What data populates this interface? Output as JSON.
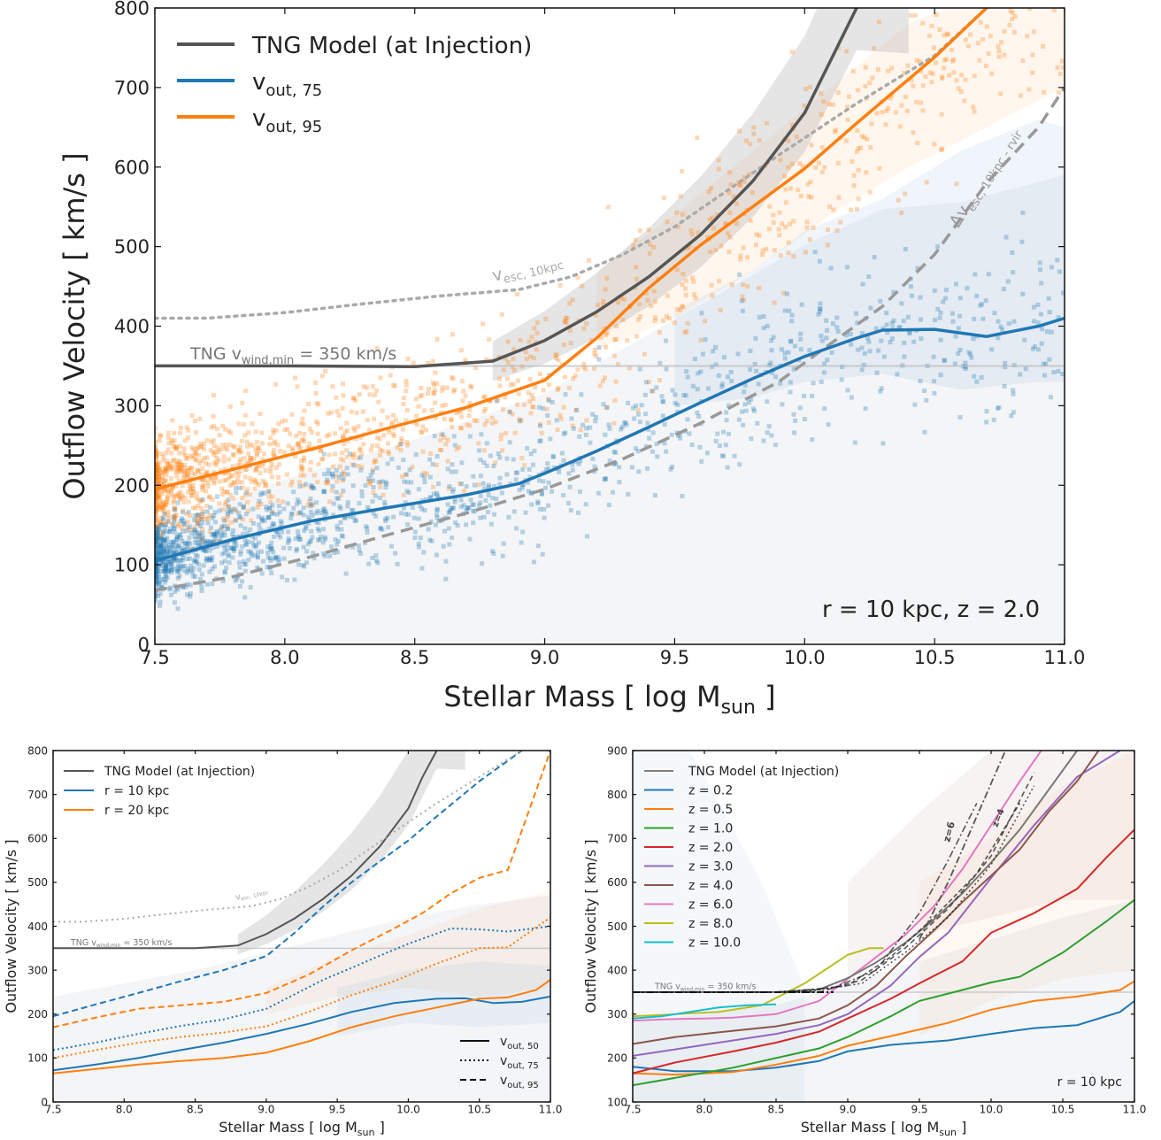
{
  "chart_data": [
    {
      "type": "line",
      "xlabel": "Stellar Mass [ log M",
      "xlabel_sub": "sun",
      "xlabel_end": " ]",
      "ylabel": "Outflow Velocity [ km/s ]",
      "xlim": [
        7.5,
        11.0
      ],
      "ylim": [
        0,
        800
      ],
      "xticks": [
        "7.5",
        "8.0",
        "8.5",
        "9.0",
        "9.5",
        "10.0",
        "10.5",
        "11.0"
      ],
      "yticks": [
        "0",
        "100",
        "200",
        "300",
        "400",
        "500",
        "600",
        "700",
        "800"
      ],
      "annotation": "r =  10 kpc, z = 2.0",
      "wind_label": "TNG v",
      "wind_label_sub": "wind,min",
      "wind_label_end": " = 350 km/s",
      "vesc_label": "v",
      "vesc_label_sub": "esc, 10kpc",
      "dvesc_label": "Δv",
      "dvesc_label_sub": "esc, 10kpc - rvir",
      "legend": [
        {
          "label": "TNG Model (at Injection)",
          "sub": "",
          "color": "#555555"
        },
        {
          "label": "v",
          "sub": "out, 75",
          "color": "#1f77b4"
        },
        {
          "label": "v",
          "sub": "out, 95",
          "color": "#ff7f0e"
        }
      ],
      "series": [
        {
          "key": "tng",
          "color": "#555555",
          "x": [
            7.5,
            8.0,
            8.5,
            8.8,
            9.0,
            9.2,
            9.4,
            9.6,
            9.8,
            10.0,
            10.2
          ],
          "values": [
            350,
            350,
            349,
            356,
            382,
            418,
            462,
            515,
            582,
            668,
            800
          ]
        },
        {
          "key": "v75",
          "color": "#1f77b4",
          "x": [
            7.5,
            7.8,
            8.1,
            8.4,
            8.7,
            8.9,
            9.0,
            9.2,
            9.4,
            9.6,
            9.8,
            10.0,
            10.2,
            10.3,
            10.5,
            10.7,
            10.9,
            11.0
          ],
          "values": [
            105,
            132,
            155,
            172,
            188,
            202,
            215,
            243,
            273,
            304,
            334,
            362,
            385,
            395,
            396,
            387,
            400,
            410
          ]
        },
        {
          "key": "v95",
          "color": "#ff7f0e",
          "x": [
            7.5,
            7.8,
            8.1,
            8.4,
            8.7,
            9.0,
            9.2,
            9.4,
            9.6,
            9.8,
            10.0,
            10.2,
            10.5,
            10.7
          ],
          "values": [
            195,
            220,
            245,
            272,
            298,
            332,
            385,
            448,
            502,
            550,
            598,
            655,
            738,
            800
          ]
        },
        {
          "key": "vesc",
          "color": "#aaaaaa",
          "x": [
            7.5,
            7.7,
            8.0,
            8.3,
            8.6,
            8.9,
            9.1,
            9.3,
            9.5,
            9.7,
            9.9,
            10.2,
            10.5,
            10.8,
            11.0
          ],
          "values": [
            410,
            410,
            417,
            428,
            438,
            446,
            462,
            490,
            525,
            570,
            615,
            680,
            740,
            830,
            900
          ]
        },
        {
          "key": "dvesc",
          "color": "#999999",
          "x": [
            7.5,
            7.8,
            8.1,
            8.4,
            8.7,
            9.0,
            9.3,
            9.6,
            9.9,
            10.1,
            10.3,
            10.5,
            10.7,
            10.9,
            11.0
          ],
          "values": [
            68,
            85,
            110,
            138,
            165,
            195,
            233,
            278,
            330,
            378,
            425,
            490,
            580,
            650,
            700
          ]
        }
      ]
    },
    {
      "type": "line",
      "xlabel": "Stellar Mass [ log M",
      "xlabel_sub": "sun",
      "xlabel_end": " ]",
      "ylabel": "Outflow Velocity [ km/s ]",
      "xlim": [
        7.5,
        11.0
      ],
      "ylim": [
        0,
        800
      ],
      "xticks": [
        "7.5",
        "8.0",
        "8.5",
        "9.0",
        "9.5",
        "10.0",
        "10.5",
        "11.0"
      ],
      "yticks": [
        "0",
        "100",
        "200",
        "300",
        "400",
        "500",
        "600",
        "700",
        "800"
      ],
      "wind_label": "TNG v",
      "wind_label_sub": "wind,min",
      "wind_label_end": " = 350 km/s",
      "vesc_label": "v",
      "vesc_label_sub": "esc, 10kpc",
      "legend": [
        {
          "label": "TNG Model (at Injection)",
          "color": "#555555"
        },
        {
          "label": "r =  10 kpc",
          "color": "#1f77b4"
        },
        {
          "label": "r =  20 kpc",
          "color": "#ff7f0e"
        }
      ],
      "style_legend": [
        {
          "label": "v",
          "sub": "out, 50",
          "dash": "solid"
        },
        {
          "label": "v",
          "sub": "out, 75",
          "dash": "dotted"
        },
        {
          "label": "v",
          "sub": "out, 95",
          "dash": "dashed"
        }
      ],
      "series": [
        {
          "name": "r =  10 kpc",
          "stat": "v50",
          "color": "#1f77b4",
          "x": [
            7.5,
            7.8,
            8.1,
            8.4,
            8.7,
            9.0,
            9.3,
            9.6,
            9.9,
            10.2,
            10.4,
            10.6,
            10.8,
            11.0
          ],
          "values": [
            72,
            85,
            100,
            118,
            135,
            155,
            178,
            205,
            225,
            235,
            236,
            225,
            228,
            240
          ]
        },
        {
          "name": "r =  10 kpc",
          "stat": "v75",
          "color": "#1f77b4",
          "x": [
            7.5,
            7.8,
            8.1,
            8.4,
            8.7,
            9.0,
            9.2,
            9.4,
            9.6,
            9.8,
            10.0,
            10.3,
            10.5,
            10.7,
            11.0
          ],
          "values": [
            118,
            135,
            155,
            173,
            188,
            212,
            245,
            278,
            305,
            333,
            360,
            395,
            393,
            388,
            400
          ]
        },
        {
          "name": "r =  10 kpc",
          "stat": "v95",
          "color": "#1f77b4",
          "x": [
            7.5,
            7.8,
            8.1,
            8.4,
            8.7,
            9.0,
            9.2,
            9.4,
            9.6,
            9.8,
            10.0,
            10.2,
            10.5,
            10.8
          ],
          "values": [
            195,
            222,
            248,
            275,
            300,
            332,
            385,
            445,
            500,
            548,
            595,
            650,
            730,
            800
          ]
        },
        {
          "name": "r =  20 kpc",
          "stat": "v50",
          "color": "#ff7f0e",
          "x": [
            7.5,
            7.8,
            8.1,
            8.4,
            8.7,
            9.0,
            9.3,
            9.6,
            9.9,
            10.2,
            10.5,
            10.7,
            10.9,
            11.0
          ],
          "values": [
            65,
            75,
            85,
            93,
            100,
            112,
            138,
            170,
            195,
            215,
            235,
            238,
            255,
            278
          ]
        },
        {
          "name": "r =  20 kpc",
          "stat": "v75",
          "color": "#ff7f0e",
          "x": [
            7.5,
            7.8,
            8.1,
            8.4,
            8.7,
            9.0,
            9.3,
            9.6,
            9.9,
            10.2,
            10.5,
            10.7,
            11.0
          ],
          "values": [
            100,
            118,
            135,
            148,
            158,
            172,
            205,
            243,
            275,
            315,
            350,
            352,
            420
          ]
        },
        {
          "name": "r =  20 kpc",
          "stat": "v95",
          "color": "#ff7f0e",
          "x": [
            7.5,
            7.8,
            8.1,
            8.4,
            8.7,
            9.0,
            9.3,
            9.6,
            9.9,
            10.1,
            10.3,
            10.5,
            10.7,
            11.0
          ],
          "values": [
            170,
            192,
            212,
            220,
            228,
            248,
            290,
            345,
            395,
            430,
            475,
            510,
            528,
            800
          ]
        },
        {
          "name": "TNG Model (at Injection)",
          "stat": "tng",
          "color": "#555555",
          "x": [
            7.5,
            8.0,
            8.5,
            8.8,
            9.0,
            9.2,
            9.4,
            9.6,
            9.8,
            10.0,
            10.1,
            10.2
          ],
          "values": [
            350,
            350,
            350,
            356,
            382,
            418,
            462,
            515,
            582,
            668,
            740,
            800
          ]
        },
        {
          "name": "vesc",
          "stat": "vesc",
          "color": "#aaaaaa",
          "x": [
            7.5,
            7.7,
            8.0,
            8.3,
            8.6,
            8.9,
            9.1,
            9.3,
            9.5,
            9.7,
            9.9,
            10.2,
            10.5,
            10.8
          ],
          "values": [
            410,
            410,
            417,
            428,
            438,
            446,
            462,
            490,
            525,
            570,
            615,
            680,
            740,
            800
          ]
        }
      ]
    },
    {
      "type": "line",
      "xlabel": "Stellar Mass [ log M",
      "xlabel_sub": "sun",
      "xlabel_end": " ]",
      "ylabel": "Outflow Velocity [ km/s ]",
      "xlim": [
        7.5,
        11.0
      ],
      "ylim": [
        100,
        900
      ],
      "xticks": [
        "7.5",
        "8.0",
        "8.5",
        "9.0",
        "9.5",
        "10.0",
        "10.5",
        "11.0"
      ],
      "yticks": [
        "100",
        "200",
        "300",
        "400",
        "500",
        "600",
        "700",
        "800",
        "900"
      ],
      "annotation": "r =  10 kpc",
      "wind_label": "TNG v",
      "wind_label_sub": "wind,min",
      "wind_label_end": " = 350 km/s",
      "z_labels": [
        "z=6",
        "z=4"
      ],
      "legend": [
        {
          "label": "TNG Model (at Injection)",
          "color": "#8c7b75"
        },
        {
          "label": "z = 0.2",
          "color": "#1f77b4"
        },
        {
          "label": "z = 0.5",
          "color": "#ff7f0e"
        },
        {
          "label": "z = 1.0",
          "color": "#2ca02c"
        },
        {
          "label": "z = 2.0",
          "color": "#d62728"
        },
        {
          "label": "z = 3.0",
          "color": "#9467bd"
        },
        {
          "label": "z = 4.0",
          "color": "#8c564b"
        },
        {
          "label": "z = 6.0",
          "color": "#e377c2"
        },
        {
          "label": "z = 8.0",
          "color": "#bcbd22"
        },
        {
          "label": "z = 10.0",
          "color": "#17becf"
        }
      ],
      "series": [
        {
          "name": "z = 0.2",
          "color": "#1f77b4",
          "x": [
            7.5,
            7.8,
            8.2,
            8.5,
            8.8,
            9.0,
            9.3,
            9.7,
            10.0,
            10.3,
            10.6,
            10.9,
            11.0
          ],
          "values": [
            180,
            170,
            170,
            178,
            193,
            215,
            230,
            240,
            255,
            268,
            275,
            305,
            330
          ]
        },
        {
          "name": "z = 0.5",
          "color": "#ff7f0e",
          "x": [
            7.5,
            7.8,
            8.2,
            8.5,
            8.8,
            9.0,
            9.3,
            9.7,
            10.0,
            10.3,
            10.6,
            10.9,
            11.0
          ],
          "values": [
            165,
            162,
            168,
            185,
            205,
            228,
            250,
            280,
            310,
            330,
            340,
            355,
            375
          ]
        },
        {
          "name": "z = 1.0",
          "color": "#2ca02c",
          "x": [
            7.5,
            7.8,
            8.2,
            8.5,
            8.8,
            9.0,
            9.3,
            9.5,
            9.8,
            10.0,
            10.2,
            10.5,
            10.8,
            11.0
          ],
          "values": [
            138,
            155,
            178,
            200,
            222,
            248,
            295,
            330,
            355,
            372,
            385,
            440,
            510,
            560
          ]
        },
        {
          "name": "z = 2.0",
          "color": "#d62728",
          "x": [
            7.5,
            7.8,
            8.2,
            8.5,
            8.8,
            9.0,
            9.3,
            9.5,
            9.8,
            10.0,
            10.3,
            10.6,
            10.8,
            11.0
          ],
          "values": [
            165,
            190,
            215,
            235,
            260,
            290,
            335,
            370,
            420,
            485,
            530,
            585,
            655,
            720
          ]
        },
        {
          "name": "z = 3.0",
          "color": "#9467bd",
          "x": [
            7.5,
            7.8,
            8.2,
            8.5,
            8.8,
            9.0,
            9.3,
            9.5,
            9.7,
            10.0,
            10.3,
            10.6,
            10.9
          ],
          "values": [
            205,
            220,
            240,
            255,
            275,
            300,
            365,
            430,
            485,
            610,
            730,
            840,
            900
          ]
        },
        {
          "name": "z = 4.0",
          "color": "#8c564b",
          "x": [
            7.5,
            7.8,
            8.2,
            8.5,
            8.8,
            9.0,
            9.2,
            9.4,
            9.6,
            9.8,
            10.0,
            10.2,
            10.4,
            10.6,
            10.75
          ],
          "values": [
            232,
            248,
            262,
            272,
            290,
            320,
            365,
            430,
            490,
            555,
            615,
            675,
            760,
            830,
            900
          ]
        },
        {
          "name": "z = 6.0",
          "color": "#e377c2",
          "x": [
            7.5,
            7.7,
            8.0,
            8.2,
            8.5,
            8.8,
            9.0,
            9.2,
            9.4,
            9.6,
            9.8,
            10.0,
            10.2,
            10.35
          ],
          "values": [
            285,
            288,
            290,
            292,
            300,
            330,
            380,
            430,
            480,
            545,
            630,
            730,
            830,
            900
          ]
        },
        {
          "name": "z = 8.0",
          "color": "#bcbd22",
          "x": [
            7.5,
            7.8,
            8.1,
            8.4,
            8.7,
            9.0,
            9.15,
            9.25
          ],
          "values": [
            295,
            300,
            305,
            320,
            370,
            435,
            450,
            450
          ]
        },
        {
          "name": "z = 10.0",
          "color": "#17becf",
          "x": [
            7.5,
            7.7,
            7.9,
            8.1,
            8.3,
            8.5
          ],
          "values": [
            290,
            295,
            305,
            315,
            320,
            322
          ]
        },
        {
          "name": "TNG Model (at Injection)",
          "color": "#777777",
          "x": [
            7.5,
            8.0,
            8.5,
            8.8,
            9.0,
            9.2,
            9.4,
            9.6,
            9.8,
            10.0,
            10.2,
            10.4,
            10.6
          ],
          "values": [
            350,
            350,
            350,
            356,
            382,
            418,
            462,
            515,
            575,
            645,
            720,
            810,
            900
          ]
        }
      ]
    }
  ]
}
